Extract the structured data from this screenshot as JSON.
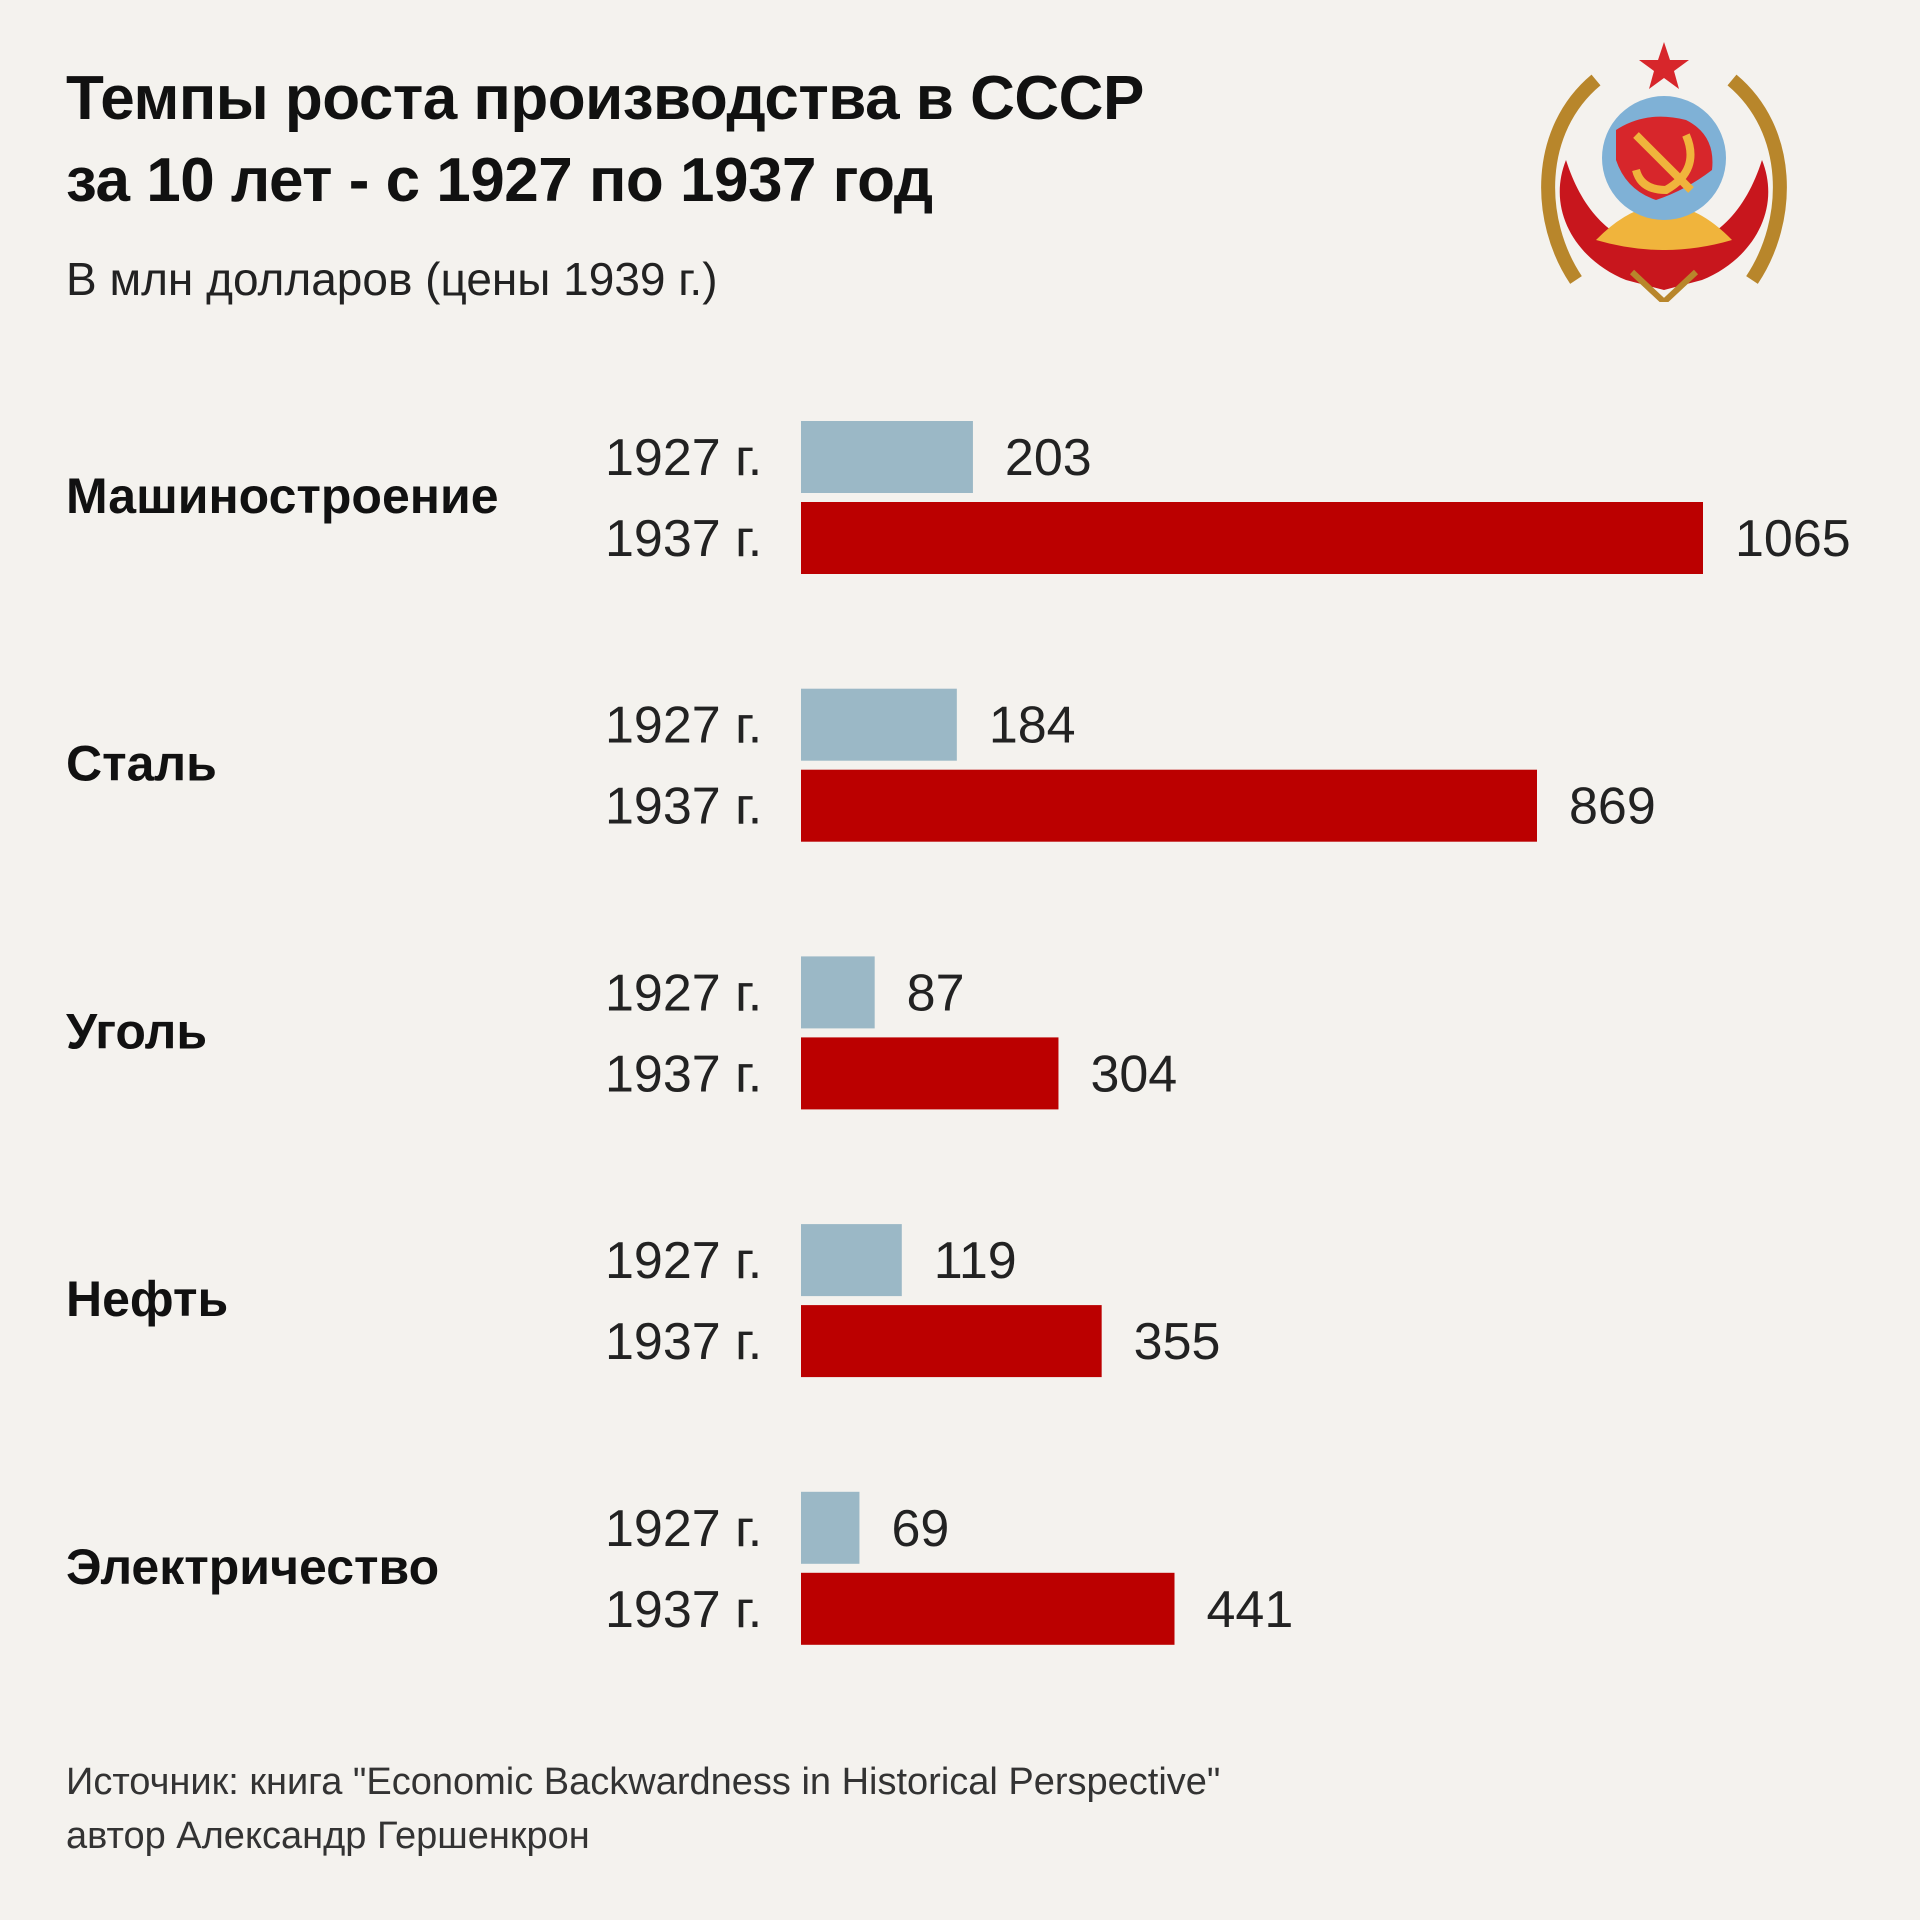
{
  "header": {
    "title_line1": "Темпы роста производства в СССР",
    "title_line2": "за 10 лет - с 1927 по 1937 год",
    "subtitle": "В млн долларов (цены 1939 г.)"
  },
  "footer": {
    "line1": "Источник: книга \"Economic Backwardness in Historical Perspective\"",
    "line2": "автор Александр Гершенкрон"
  },
  "colors": {
    "background": "#f4f2ee",
    "bar_1927": "#9bb8c6",
    "bar_1937": "#bb0000"
  },
  "chart_data": {
    "type": "bar",
    "orientation": "horizontal",
    "title": "Темпы роста производства в СССР за 10 лет - с 1927 по 1937 год",
    "subtitle": "В млн долларов (цены 1939 г.)",
    "categories": [
      "Машиностроение",
      "Сталь",
      "Уголь",
      "Нефть",
      "Электричество"
    ],
    "series": [
      {
        "name": "1927 г.",
        "values": [
          203,
          184,
          87,
          119,
          69
        ]
      },
      {
        "name": "1937 г.",
        "values": [
          1065,
          869,
          304,
          355,
          441
        ]
      }
    ],
    "xlim": [
      0,
      1065
    ],
    "grid": false,
    "data_labels": true
  }
}
